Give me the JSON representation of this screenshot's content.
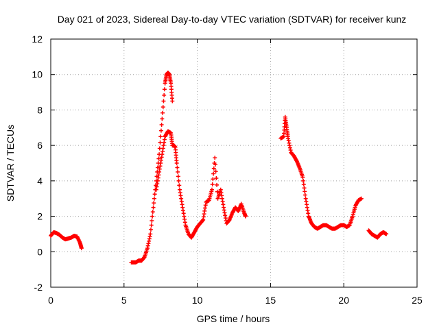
{
  "chart_data": {
    "type": "scatter",
    "title": "Day 021 of 2023, Sidereal Day-to-day VTEC variation (SDTVAR) for receiver kunz",
    "xlabel": "GPS time / hours",
    "ylabel": "SDTVAR / TECUs",
    "xlim": [
      0,
      25
    ],
    "ylim": [
      -2,
      12
    ],
    "xticks": [
      0,
      5,
      10,
      15,
      20,
      25
    ],
    "yticks": [
      -2,
      0,
      2,
      4,
      6,
      8,
      10,
      12
    ],
    "grid": true,
    "marker": "+",
    "series": [
      {
        "name": "SDTVAR",
        "color": "#ff0000",
        "segments": [
          {
            "x": [
              0.0,
              0.2,
              0.4,
              0.6,
              0.8,
              1.0,
              1.2,
              1.4,
              1.6,
              1.8,
              2.0,
              2.1
            ],
            "y": [
              0.9,
              1.1,
              1.05,
              0.95,
              0.8,
              0.7,
              0.75,
              0.8,
              0.9,
              0.85,
              0.5,
              0.2
            ]
          },
          {
            "x": [
              5.5,
              5.8,
              6.0,
              6.2,
              6.4,
              6.6,
              6.8,
              7.0,
              7.2,
              7.4,
              7.6,
              7.8,
              7.9,
              8.0,
              8.1,
              8.2,
              8.3
            ],
            "y": [
              -0.6,
              -0.6,
              -0.5,
              -0.5,
              -0.3,
              0.2,
              1.0,
              2.5,
              4.0,
              5.5,
              7.5,
              9.5,
              10.0,
              10.1,
              10.0,
              9.5,
              8.5
            ]
          },
          {
            "x": [
              7.2,
              7.4,
              7.6,
              7.8,
              8.0,
              8.2,
              8.3,
              8.4,
              8.5,
              8.6,
              8.8,
              9.0,
              9.2,
              9.4,
              9.6,
              9.8,
              10.0,
              10.2,
              10.4,
              10.6,
              10.8,
              11.0,
              11.2,
              11.4,
              11.6,
              11.8,
              12.0,
              12.2,
              12.4,
              12.6,
              12.8,
              13.0,
              13.2,
              13.3
            ],
            "y": [
              3.5,
              4.5,
              5.5,
              6.5,
              6.8,
              6.7,
              6.0,
              6.0,
              5.9,
              5.0,
              3.5,
              2.5,
              1.5,
              1.0,
              0.8,
              1.1,
              1.4,
              1.6,
              1.8,
              2.8,
              2.9,
              3.5,
              5.3,
              3.0,
              3.5,
              2.5,
              1.6,
              1.8,
              2.2,
              2.5,
              2.3,
              2.7,
              2.2,
              2.0
            ]
          },
          {
            "x": [
              15.7,
              15.9,
              16.0,
              16.1,
              16.2,
              16.4,
              16.6,
              16.8,
              17.0,
              17.2,
              17.4,
              17.6,
              17.8,
              18.0,
              18.2,
              18.4,
              18.6,
              18.8,
              19.0,
              19.2,
              19.4,
              19.6,
              19.8,
              20.0,
              20.2,
              20.4,
              20.6,
              20.8,
              21.0,
              21.2
            ],
            "y": [
              6.4,
              6.5,
              7.6,
              7.0,
              6.4,
              5.6,
              5.4,
              5.1,
              4.7,
              4.2,
              3.0,
              2.0,
              1.6,
              1.4,
              1.3,
              1.4,
              1.5,
              1.5,
              1.4,
              1.3,
              1.3,
              1.4,
              1.5,
              1.5,
              1.4,
              1.5,
              2.0,
              2.6,
              2.9,
              3.0
            ]
          },
          {
            "x": [
              21.7,
              21.9,
              22.1,
              22.3,
              22.5,
              22.7,
              22.9
            ],
            "y": [
              1.2,
              1.0,
              0.9,
              0.8,
              1.0,
              1.1,
              1.0
            ]
          }
        ]
      }
    ]
  }
}
